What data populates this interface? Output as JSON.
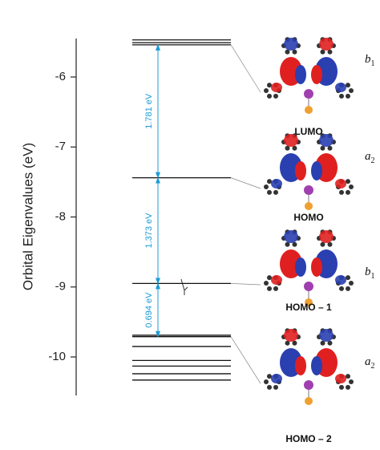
{
  "chart_data": {
    "type": "energy-levels",
    "y_label": "Orbital Eigenvalues (eV)",
    "ylim": [
      -10.55,
      -5.45
    ],
    "yticks": [
      -6,
      -7,
      -8,
      -9,
      -10
    ],
    "color": "#111111",
    "gap_color": "#1a9bd7",
    "orbitals": [
      {
        "name": "LUMO",
        "symmetry": "b",
        "symmetry_index": "1",
        "energy": -5.54
      },
      {
        "name": "HOMO",
        "symmetry": "a",
        "symmetry_index": "2",
        "energy": -7.44
      },
      {
        "name": "HOMO – 1",
        "symmetry": "b",
        "symmetry_index": "1",
        "energy": -8.95
      },
      {
        "name": "HOMO – 2",
        "symmetry": "a",
        "symmetry_index": "2",
        "energy": -9.71
      }
    ],
    "levels": [
      -5.47,
      -5.51,
      -9.69,
      -9.85,
      -10.05,
      -10.13,
      -10.24,
      -10.33
    ],
    "gaps": [
      {
        "value": 1.781,
        "label": "1.781 eV"
      },
      {
        "value": 1.373,
        "label": "1.373 eV"
      },
      {
        "value": 0.694,
        "label": "0.694 eV"
      }
    ]
  }
}
